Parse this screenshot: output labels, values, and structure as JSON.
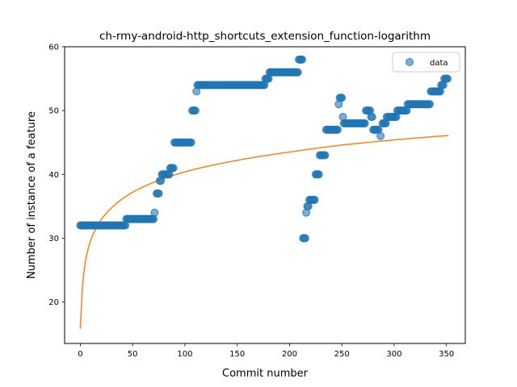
{
  "chart_data": {
    "type": "scatter",
    "title": "ch-rmy-android-http_shortcuts_extension_function-logarithm",
    "xlabel": "Commit number",
    "ylabel": "Number of instance of a feature",
    "xlim": [
      -15,
      368
    ],
    "ylim": [
      13.5,
      60
    ],
    "xticks": [
      0,
      50,
      100,
      150,
      200,
      250,
      300,
      350
    ],
    "yticks": [
      20,
      30,
      40,
      50,
      60
    ],
    "legend": {
      "position": "top-right",
      "entries": [
        "data"
      ]
    },
    "colors": {
      "data": "#1f77b4",
      "fit": "#ff7f0e"
    },
    "segments": [
      {
        "x0": 0,
        "x1": 43,
        "y": 32
      },
      {
        "x0": 44,
        "x1": 70,
        "y": 33
      },
      {
        "x0": 71,
        "x1": 71,
        "y": 34
      },
      {
        "x0": 73,
        "x1": 75,
        "y": 37
      },
      {
        "x0": 76,
        "x1": 77,
        "y": 39
      },
      {
        "x0": 78,
        "x1": 85,
        "y": 40
      },
      {
        "x0": 86,
        "x1": 89,
        "y": 41
      },
      {
        "x0": 90,
        "x1": 106,
        "y": 45
      },
      {
        "x0": 107,
        "x1": 110,
        "y": 50
      },
      {
        "x0": 111,
        "x1": 111,
        "y": 53
      },
      {
        "x0": 112,
        "x1": 176,
        "y": 54
      },
      {
        "x0": 177,
        "x1": 180,
        "y": 55
      },
      {
        "x0": 181,
        "x1": 208,
        "y": 56
      },
      {
        "x0": 209,
        "x1": 212,
        "y": 58
      },
      {
        "x0": 213,
        "x1": 215,
        "y": 30
      },
      {
        "x0": 216,
        "x1": 216,
        "y": 34
      },
      {
        "x0": 217,
        "x1": 218,
        "y": 35
      },
      {
        "x0": 219,
        "x1": 224,
        "y": 36
      },
      {
        "x0": 225,
        "x1": 228,
        "y": 40
      },
      {
        "x0": 229,
        "x1": 234,
        "y": 43
      },
      {
        "x0": 235,
        "x1": 246,
        "y": 47
      },
      {
        "x0": 247,
        "x1": 247,
        "y": 51
      },
      {
        "x0": 248,
        "x1": 250,
        "y": 52
      },
      {
        "x0": 251,
        "x1": 251,
        "y": 49
      },
      {
        "x0": 252,
        "x1": 272,
        "y": 48
      },
      {
        "x0": 273,
        "x1": 277,
        "y": 50
      },
      {
        "x0": 278,
        "x1": 279,
        "y": 49
      },
      {
        "x0": 280,
        "x1": 285,
        "y": 47
      },
      {
        "x0": 287,
        "x1": 287,
        "y": 46
      },
      {
        "x0": 289,
        "x1": 292,
        "y": 48
      },
      {
        "x0": 293,
        "x1": 302,
        "y": 49
      },
      {
        "x0": 303,
        "x1": 312,
        "y": 50
      },
      {
        "x0": 313,
        "x1": 334,
        "y": 51
      },
      {
        "x0": 335,
        "x1": 344,
        "y": 53
      },
      {
        "x0": 345,
        "x1": 347,
        "y": 54
      },
      {
        "x0": 348,
        "x1": 351,
        "y": 55
      }
    ],
    "fit": {
      "kind": "logarithmic",
      "x": [
        0,
        1,
        2,
        5,
        10,
        20,
        50,
        100,
        150,
        200,
        250,
        300,
        352
      ],
      "y": [
        15.8,
        19.0,
        22.2,
        26.5,
        29.7,
        32.9,
        37.2,
        40.4,
        42.2,
        43.5,
        44.6,
        45.4,
        46.1
      ]
    }
  }
}
